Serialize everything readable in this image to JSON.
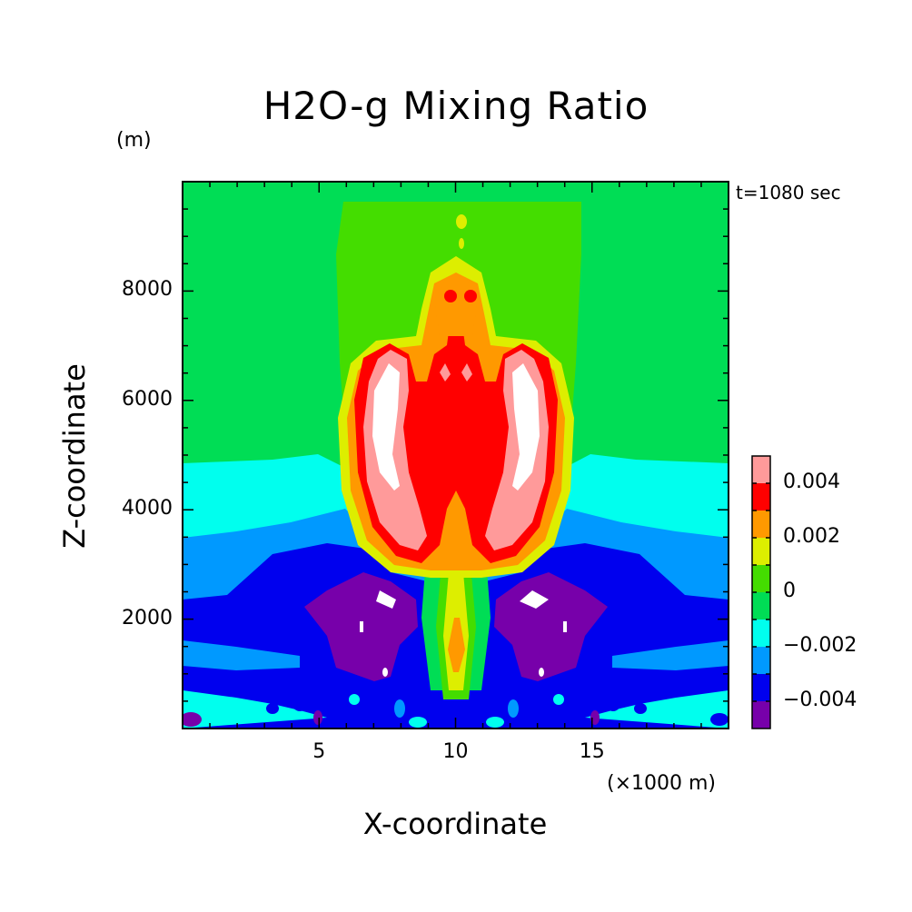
{
  "chart_data": {
    "type": "heatmap",
    "title": "H2O-g Mixing Ratio",
    "xlabel": "X-coordinate",
    "ylabel": "Z-coordinate",
    "x_unit": "(×1000 m)",
    "y_unit": "(m)",
    "annotation": "t=1080 sec",
    "xlim": [
      0,
      20
    ],
    "ylim": [
      0,
      10000
    ],
    "x_ticks": [
      5,
      10,
      15
    ],
    "x_tick_labels": [
      "5",
      "10",
      "15"
    ],
    "y_ticks": [
      2000,
      4000,
      6000,
      8000
    ],
    "y_tick_labels": [
      "2000",
      "4000",
      "6000",
      "8000"
    ],
    "colorbar": {
      "range": [
        -0.005,
        0.005
      ],
      "step": 0.001,
      "tick_values": [
        0.004,
        0.002,
        0,
        -0.002,
        -0.004
      ],
      "tick_labels": [
        "0.004",
        "0.002",
        "0",
        "−0.002",
        "−0.004"
      ],
      "colors_top_to_bottom": [
        "#ff9a9a",
        "#ff0000",
        "#ff9900",
        "#ddee00",
        "#44dd00",
        "#00dd55",
        "#00ffee",
        "#0099ff",
        "#0000ee",
        "#7700aa"
      ],
      "above_max_color": "#ffffff"
    },
    "field_features": [
      {
        "level": -0.002,
        "x": [
          0,
          20
        ],
        "z": [
          0,
          4800
        ],
        "kind": "background layer"
      },
      {
        "level": -0.004,
        "x": [
          0,
          20
        ],
        "z": [
          0,
          3400
        ],
        "kind": "background layer"
      },
      {
        "level": 0.004,
        "x": [
          6.5,
          13.5
        ],
        "z": [
          3000,
          7100
        ],
        "kind": "plume core"
      },
      {
        "level": 0.005,
        "x": [
          7.5,
          8.5
        ],
        "z": [
          4200,
          6800
        ],
        "kind": "left lobe maximum"
      },
      {
        "level": 0.005,
        "x": [
          11.5,
          12.5
        ],
        "z": [
          4200,
          6800
        ],
        "kind": "right lobe maximum"
      },
      {
        "level": -0.005,
        "x": [
          4.5,
          8.5
        ],
        "z": [
          1000,
          2800
        ],
        "kind": "left dry pocket"
      },
      {
        "level": -0.005,
        "x": [
          11.5,
          15.5
        ],
        "z": [
          1000,
          2800
        ],
        "kind": "right dry pocket"
      }
    ]
  }
}
